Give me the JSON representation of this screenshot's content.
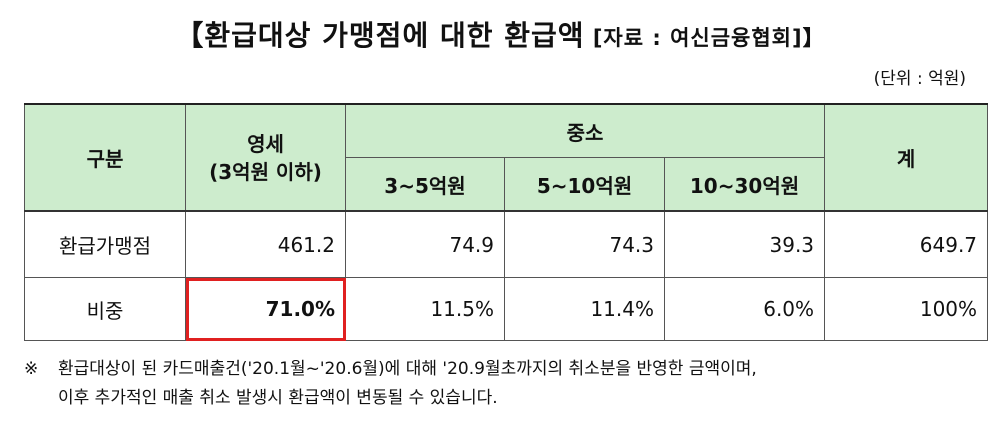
{
  "title": {
    "main": "【환급대상 가맹점에 대한 환급액",
    "source": " [자료 : 여신금융협회]】"
  },
  "unit": "(단위 : 억원)",
  "table": {
    "header": {
      "category": "구분",
      "small_line1": "영세",
      "small_line2": "(3억원 이하)",
      "medium": "중소",
      "total": "계",
      "sub": [
        "3~5억원",
        "5~10억원",
        "10~30억원"
      ]
    },
    "rows": [
      {
        "label": "환급가맹점",
        "values": [
          "461.2",
          "74.9",
          "74.3",
          "39.3",
          "649.7"
        ]
      },
      {
        "label": "비중",
        "values": [
          "71.0%",
          "11.5%",
          "11.4%",
          "6.0%",
          "100%"
        ]
      }
    ]
  },
  "note": {
    "mark": "※",
    "line1": "환급대상이 된 카드매출건('20.1월~'20.6월)에 대해 '20.9월초까지의 취소분을 반영한 금액이며,",
    "line2": "이후 추가적인 매출 취소 발생시 환급액이 변동될 수 있습니다."
  }
}
